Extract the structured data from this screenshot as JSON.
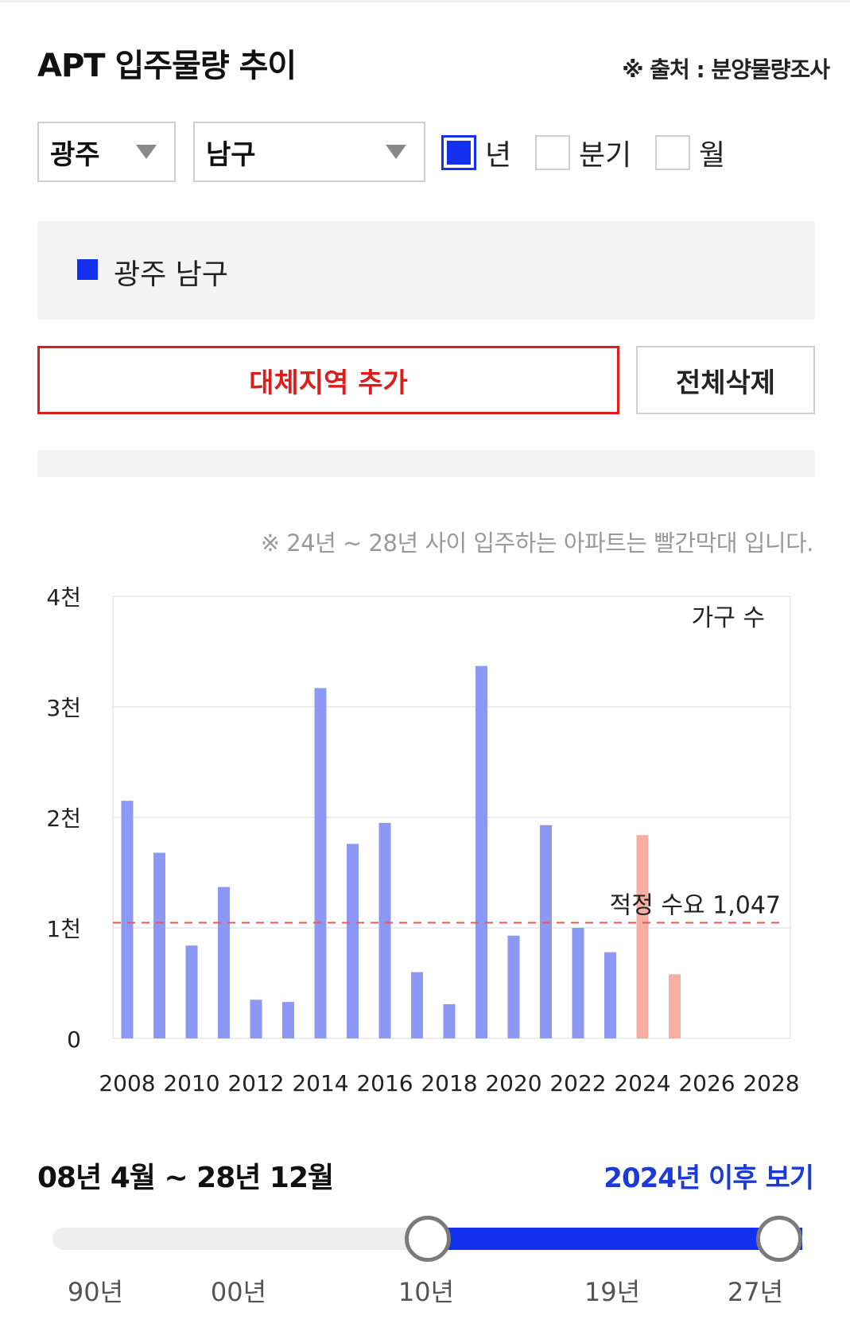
{
  "header": {
    "title": "APT 입주물량 추이",
    "source": "※ 출처 : 분양물량조사"
  },
  "filters": {
    "region": "광주",
    "district": "남구",
    "periods": [
      {
        "label": "년",
        "checked": true
      },
      {
        "label": "분기",
        "checked": false
      },
      {
        "label": "월",
        "checked": false
      }
    ]
  },
  "legend": {
    "item": "광주 남구",
    "color": "#1230ee"
  },
  "buttons": {
    "add": "대체지역 추가",
    "delete_all": "전체삭제"
  },
  "note": "※ 24년 ~ 28년 사이 입주하는 아파트는 빨간막대 입니다.",
  "chart_data": {
    "type": "bar",
    "y_unit_label": "가구 수",
    "ylim": [
      0,
      4000
    ],
    "yticks": [
      {
        "value": 0,
        "label": "0"
      },
      {
        "value": 1000,
        "label": "1천"
      },
      {
        "value": 2000,
        "label": "2천"
      },
      {
        "value": 3000,
        "label": "3천"
      },
      {
        "value": 4000,
        "label": "4천"
      }
    ],
    "xlim": [
      2008,
      2028
    ],
    "xtick_labels": [
      "2008",
      "2010",
      "2012",
      "2014",
      "2016",
      "2018",
      "2020",
      "2022",
      "2024",
      "2026",
      "2028"
    ],
    "categories": [
      2008,
      2009,
      2010,
      2011,
      2012,
      2013,
      2014,
      2015,
      2016,
      2017,
      2018,
      2019,
      2020,
      2021,
      2022,
      2023,
      2024,
      2025
    ],
    "values": [
      2150,
      1680,
      840,
      1370,
      350,
      330,
      3170,
      1760,
      1950,
      600,
      310,
      3370,
      930,
      1930,
      1000,
      780,
      1840,
      580
    ],
    "bar_colors": {
      "past": "#8d98f5",
      "future": "#f8aea3"
    },
    "future_from": 2024,
    "reference_line": {
      "value": 1047,
      "label": "적정 수요 1,047",
      "color": "#e35a5a"
    },
    "grid": true
  },
  "range": {
    "label": "08년 4월 ~ 28년 12월",
    "view_after": "2024년 이후 보기"
  },
  "slider": {
    "ticks": [
      "90년",
      "00년",
      "10년",
      "19년",
      "27년"
    ],
    "fill_color": "#1230ee"
  }
}
